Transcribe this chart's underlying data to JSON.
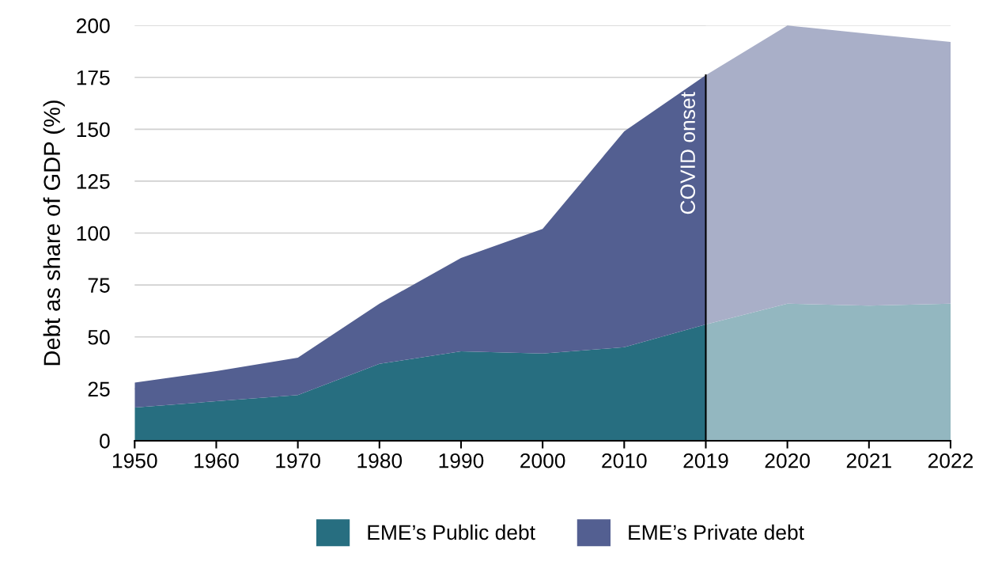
{
  "chart_data": {
    "type": "area",
    "stacked": true,
    "ylabel": "Debt as share of GDP (%)",
    "categories": [
      "1950",
      "1960",
      "1970",
      "1980",
      "1990",
      "2000",
      "2010",
      "2019",
      "2020",
      "2021",
      "2022"
    ],
    "series": [
      {
        "name": "EME’s Public debt",
        "color": "#276e80",
        "values": [
          16,
          19,
          22,
          37,
          43,
          42,
          45,
          56,
          66,
          65,
          66
        ]
      },
      {
        "name": "EME’s Private debt",
        "color": "#535f91",
        "values": [
          12,
          14.5,
          18,
          29,
          45,
          60,
          104,
          120,
          134,
          131,
          126
        ]
      }
    ],
    "ylim": [
      0,
      200
    ],
    "yticks": [
      0,
      25,
      50,
      75,
      100,
      125,
      150,
      175,
      200
    ],
    "grid": "y",
    "legend": "bottom",
    "ref_lines": [
      {
        "axis": "x",
        "value": "2019",
        "label": "COVID onset",
        "color": "#000000"
      }
    ],
    "bands": [
      {
        "axis": "x",
        "from": "2019",
        "to": "2022",
        "color": "#ffffff"
      }
    ]
  }
}
